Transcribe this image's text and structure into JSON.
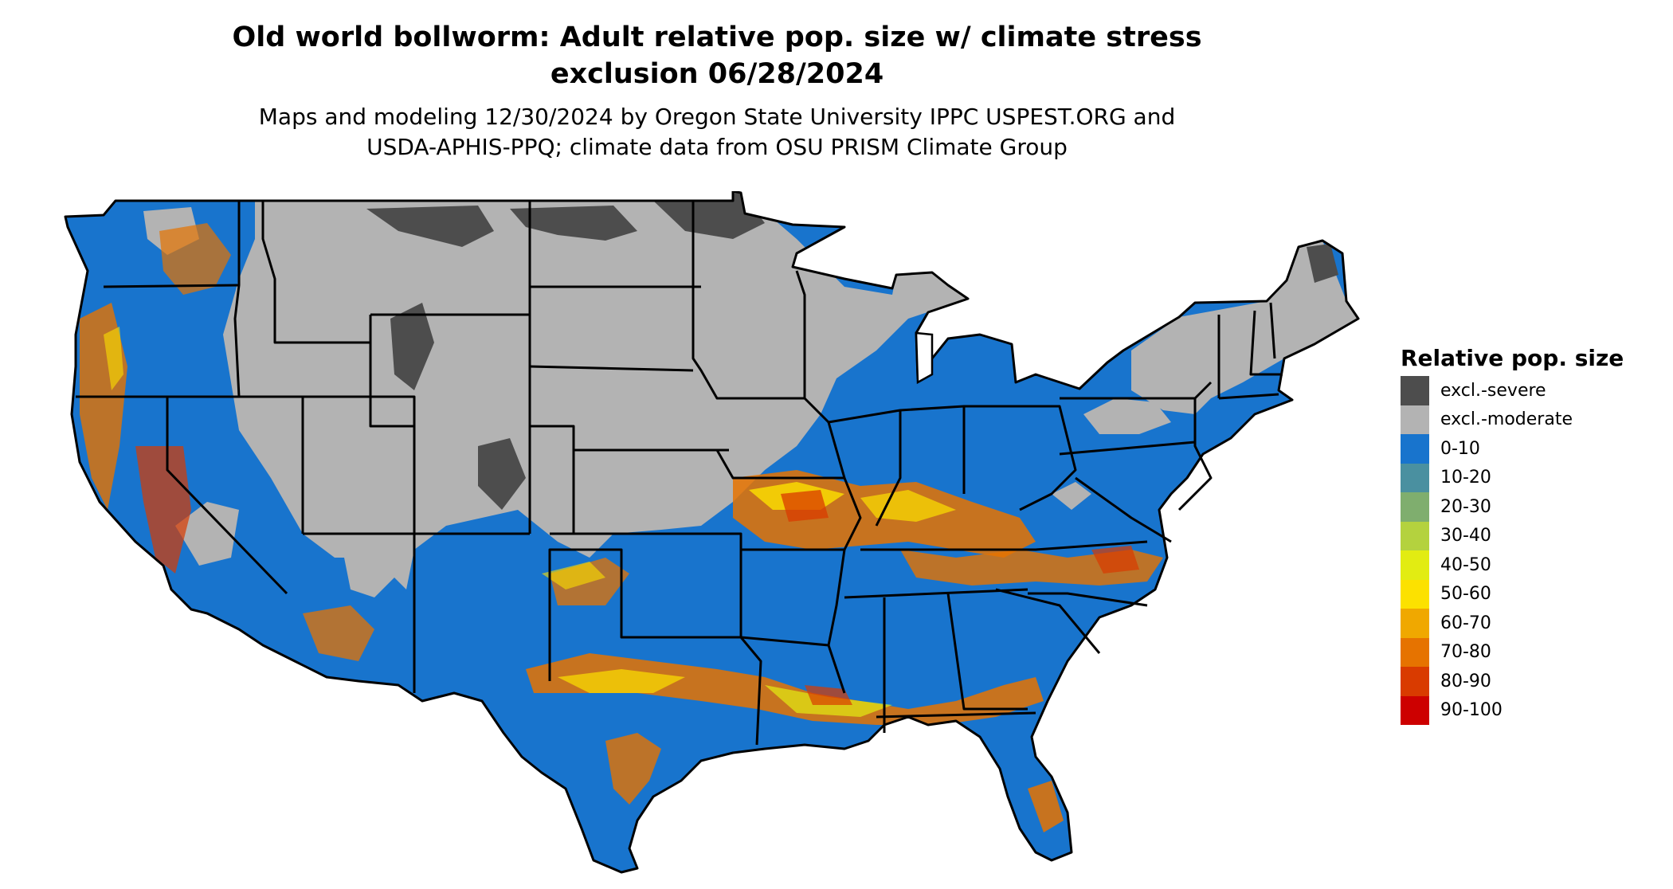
{
  "map": {
    "title_line1": "Old world bollworm: Adult relative pop. size w/ climate stress",
    "title_line2": "exclusion 06/28/2024",
    "subtitle_line1": "Maps and modeling 12/30/2024 by Oregon State University IPPC USPEST.ORG and",
    "subtitle_line2": "USDA-APHIS-PPQ; climate data from OSU PRISM Climate Group"
  },
  "legend": {
    "title": "Relative pop. size",
    "items": [
      {
        "label": "excl.-severe",
        "color": "#4d4d4d"
      },
      {
        "label": "excl.-moderate",
        "color": "#b3b3b3"
      },
      {
        "label": "0-10",
        "color": "#1874cd"
      },
      {
        "label": "10-20",
        "color": "#4a90a0"
      },
      {
        "label": "20-30",
        "color": "#7fae6e"
      },
      {
        "label": "30-40",
        "color": "#b4d23e"
      },
      {
        "label": "40-50",
        "color": "#e2ec12"
      },
      {
        "label": "50-60",
        "color": "#fce100"
      },
      {
        "label": "60-70",
        "color": "#f0a800"
      },
      {
        "label": "70-80",
        "color": "#e67300"
      },
      {
        "label": "80-90",
        "color": "#d93b00"
      },
      {
        "label": "90-100",
        "color": "#cd0000"
      }
    ]
  }
}
